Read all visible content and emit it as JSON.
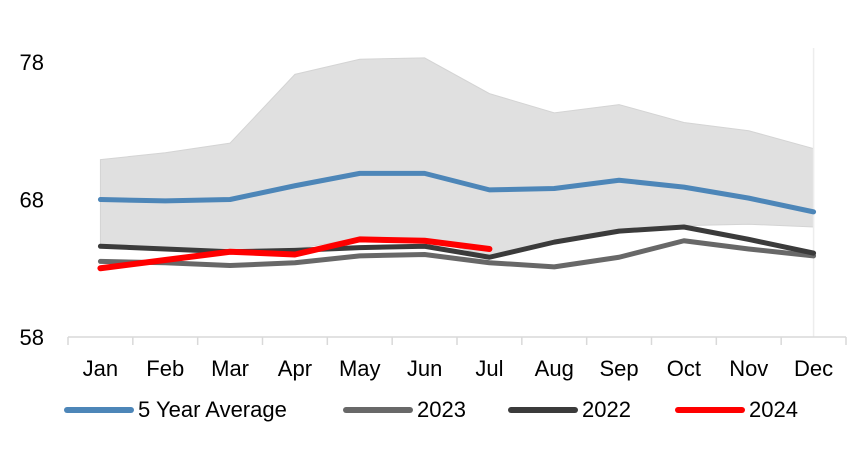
{
  "chart_data": {
    "type": "line",
    "title": "",
    "categories": [
      "Jan",
      "Feb",
      "Mar",
      "Apr",
      "May",
      "Jun",
      "Jul",
      "Aug",
      "Sep",
      "Oct",
      "Nov",
      "Dec"
    ],
    "y_axis": {
      "ticks": [
        58,
        68,
        78
      ],
      "range": [
        58,
        80
      ]
    },
    "grid": "none",
    "legend_position": "bottom",
    "axis_color": "#d9d9d9",
    "gridline_color": "#ededed",
    "text_color": "#000000",
    "band": {
      "name": "5-year-range-band",
      "fill_color": "#e0e0e0",
      "edge_color": "#d4d4d4",
      "upper": [
        70.9,
        71.4,
        72.1,
        77.1,
        78.2,
        78.3,
        75.7,
        74.3,
        74.9,
        73.6,
        73.0,
        71.7
      ],
      "lower": [
        64.7,
        64.5,
        64.3,
        64.4,
        65.2,
        65.1,
        63.9,
        65.0,
        65.8,
        66.1,
        66.2,
        66.0
      ]
    },
    "series": [
      {
        "name": "5 Year Average",
        "color": "#4d86b8",
        "width": 5,
        "values": [
          68.0,
          67.9,
          68.0,
          69.0,
          69.9,
          69.9,
          68.7,
          68.8,
          69.4,
          68.9,
          68.1,
          67.1
        ]
      },
      {
        "name": "2023",
        "color": "#686868",
        "width": 5,
        "values": [
          63.5,
          63.4,
          63.2,
          63.4,
          63.9,
          64.0,
          63.4,
          63.1,
          63.8,
          65.0,
          64.4,
          63.9
        ]
      },
      {
        "name": "2022",
        "color": "#3b3b3b",
        "width": 5,
        "values": [
          64.6,
          64.4,
          64.2,
          64.3,
          64.5,
          64.6,
          63.8,
          64.9,
          65.7,
          66.0,
          65.1,
          64.1
        ]
      },
      {
        "name": "2024",
        "color": "#ff0000",
        "width": 6,
        "values": [
          63.0,
          63.6,
          64.2,
          64.0,
          65.1,
          65.0,
          64.4,
          null,
          null,
          null,
          null,
          null
        ]
      }
    ]
  }
}
